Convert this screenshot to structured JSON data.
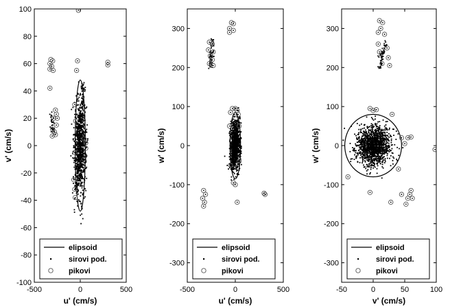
{
  "chart_data": [
    {
      "type": "scatter",
      "xlabel": "u' (cm/s)",
      "ylabel": "v' (cm/s)",
      "xlim": [
        -500,
        500
      ],
      "ylim": [
        -100,
        100
      ],
      "xticks": [
        -500,
        0,
        500
      ],
      "yticks": [
        -100,
        -80,
        -60,
        -40,
        -20,
        0,
        20,
        40,
        60,
        80,
        100
      ],
      "legend_position": "bottom",
      "grid": false,
      "ellipse": {
        "cx": 0,
        "cy": 0,
        "rx": 55,
        "ry": 48
      },
      "raw_cloud": {
        "cx": 0,
        "cy": 0,
        "sx": 32,
        "sy": 17,
        "count": 900
      },
      "raw_streaks": [
        {
          "x": [
            -300,
            -310
          ],
          "y": [
            10,
            25
          ],
          "count": 30
        },
        {
          "x": [
            -40,
            40
          ],
          "y": [
            -35,
            45
          ],
          "count": 120
        }
      ],
      "pikovi": [
        {
          "x": -320,
          "y": 63
        },
        {
          "x": -300,
          "y": 62
        },
        {
          "x": -330,
          "y": 60
        },
        {
          "x": -310,
          "y": 58
        },
        {
          "x": -330,
          "y": 56
        },
        {
          "x": -295,
          "y": 55
        },
        {
          "x": -330,
          "y": 42
        },
        {
          "x": -20,
          "y": 99
        },
        {
          "x": -30,
          "y": 62
        },
        {
          "x": -40,
          "y": 55
        },
        {
          "x": 300,
          "y": 61
        },
        {
          "x": 300,
          "y": 59
        },
        {
          "x": -270,
          "y": 26
        },
        {
          "x": -260,
          "y": 23
        },
        {
          "x": -250,
          "y": 20
        },
        {
          "x": -290,
          "y": 20
        },
        {
          "x": -260,
          "y": 15
        },
        {
          "x": -300,
          "y": 12
        },
        {
          "x": -280,
          "y": 10
        },
        {
          "x": -305,
          "y": 7
        },
        {
          "x": -270,
          "y": 8
        },
        {
          "x": -60,
          "y": 30
        },
        {
          "x": -50,
          "y": 18
        },
        {
          "x": 40,
          "y": 5
        },
        {
          "x": 60,
          "y": 2
        },
        {
          "x": -60,
          "y": -5
        },
        {
          "x": -70,
          "y": -25
        },
        {
          "x": -60,
          "y": -32
        },
        {
          "x": -55,
          "y": -38
        },
        {
          "x": 40,
          "y": -10
        },
        {
          "x": 60,
          "y": -2
        }
      ],
      "legend": [
        {
          "label": "elipsoid",
          "marker": "line"
        },
        {
          "label": "sirovi pod.",
          "marker": "dot"
        },
        {
          "label": "pikovi",
          "marker": "circle"
        }
      ]
    },
    {
      "type": "scatter",
      "xlabel": "u' (cm/s)",
      "ylabel": "w' (cm/s)",
      "xlim": [
        -500,
        500
      ],
      "ylim": [
        -350,
        350
      ],
      "xticks": [
        -500,
        0,
        500
      ],
      "yticks": [
        -300,
        -200,
        -100,
        0,
        100,
        200,
        300
      ],
      "legend_position": "bottom",
      "grid": false,
      "ellipse": {
        "cx": 0,
        "cy": 0,
        "rx": 55,
        "ry": 85
      },
      "raw_cloud": {
        "cx": 0,
        "cy": 0,
        "sx": 25,
        "sy": 30,
        "count": 900
      },
      "raw_streaks": [
        {
          "x": [
            -260,
            -240
          ],
          "y": [
            200,
            270
          ],
          "count": 60
        },
        {
          "x": [
            -40,
            30
          ],
          "y": [
            -60,
            70
          ],
          "count": 120
        }
      ],
      "pikovi": [
        {
          "x": -60,
          "y": 300
        },
        {
          "x": -40,
          "y": 315
        },
        {
          "x": -20,
          "y": 312
        },
        {
          "x": -60,
          "y": 290
        },
        {
          "x": -20,
          "y": 295
        },
        {
          "x": -270,
          "y": 265
        },
        {
          "x": -240,
          "y": 260
        },
        {
          "x": -280,
          "y": 245
        },
        {
          "x": -230,
          "y": 240
        },
        {
          "x": -260,
          "y": 230
        },
        {
          "x": -240,
          "y": 220
        },
        {
          "x": -270,
          "y": 210
        },
        {
          "x": -230,
          "y": 205
        },
        {
          "x": -30,
          "y": 95
        },
        {
          "x": 0,
          "y": 95
        },
        {
          "x": 20,
          "y": 90
        },
        {
          "x": -50,
          "y": 85
        },
        {
          "x": 30,
          "y": 80
        },
        {
          "x": -60,
          "y": 50
        },
        {
          "x": 40,
          "y": 50
        },
        {
          "x": -50,
          "y": -50
        },
        {
          "x": 40,
          "y": -40
        },
        {
          "x": -20,
          "y": -95
        },
        {
          "x": 0,
          "y": -100
        },
        {
          "x": -330,
          "y": -115
        },
        {
          "x": -310,
          "y": -125
        },
        {
          "x": -340,
          "y": -135
        },
        {
          "x": -320,
          "y": -145
        },
        {
          "x": -330,
          "y": -155
        },
        {
          "x": 300,
          "y": -122
        },
        {
          "x": 310,
          "y": -125
        },
        {
          "x": 20,
          "y": -145
        }
      ],
      "legend": [
        {
          "label": "elipsoid",
          "marker": "line"
        },
        {
          "label": "sirovi pod.",
          "marker": "dot"
        },
        {
          "label": "pikovi",
          "marker": "circle"
        }
      ]
    },
    {
      "type": "scatter",
      "xlabel": "v' (cm/s)",
      "ylabel": "w' (cm/s)",
      "xlim": [
        -50,
        100
      ],
      "ylim": [
        -350,
        350
      ],
      "xticks": [
        -50,
        0,
        50,
        100
      ],
      "yticks": [
        -300,
        -200,
        -100,
        0,
        100,
        200,
        300
      ],
      "legend_position": "bottom",
      "grid": false,
      "ellipse": {
        "cx": 0,
        "cy": 0,
        "rx": 45,
        "ry": 80
      },
      "raw_cloud": {
        "cx": 0,
        "cy": 0,
        "sx": 14,
        "sy": 25,
        "count": 1400
      },
      "raw_streaks": [
        {
          "x": [
            10,
            20
          ],
          "y": [
            200,
            270
          ],
          "count": 60
        }
      ],
      "pikovi": [
        {
          "x": 10,
          "y": 320
        },
        {
          "x": 15,
          "y": 315
        },
        {
          "x": 12,
          "y": 300
        },
        {
          "x": 8,
          "y": 290
        },
        {
          "x": 18,
          "y": 285
        },
        {
          "x": 8,
          "y": 260
        },
        {
          "x": 22,
          "y": 250
        },
        {
          "x": 10,
          "y": 240
        },
        {
          "x": 24,
          "y": 225
        },
        {
          "x": 14,
          "y": 210
        },
        {
          "x": 26,
          "y": 205
        },
        {
          "x": -5,
          "y": 95
        },
        {
          "x": 0,
          "y": 90
        },
        {
          "x": 5,
          "y": 92
        },
        {
          "x": 30,
          "y": 80
        },
        {
          "x": 45,
          "y": 20
        },
        {
          "x": 50,
          "y": 5
        },
        {
          "x": 55,
          "y": 20
        },
        {
          "x": 60,
          "y": 22
        },
        {
          "x": 40,
          "y": -60
        },
        {
          "x": -40,
          "y": -80
        },
        {
          "x": -5,
          "y": -120
        },
        {
          "x": 45,
          "y": -125
        },
        {
          "x": 60,
          "y": -115
        },
        {
          "x": 58,
          "y": -125
        },
        {
          "x": 55,
          "y": -135
        },
        {
          "x": 52,
          "y": -150
        },
        {
          "x": 28,
          "y": -145
        },
        {
          "x": 62,
          "y": -135
        },
        {
          "x": 98,
          "y": -10
        }
      ],
      "legend": [
        {
          "label": "elipsoid",
          "marker": "line"
        },
        {
          "label": "sirovi pod.",
          "marker": "dot"
        },
        {
          "label": "pikovi",
          "marker": "circle"
        }
      ]
    }
  ]
}
